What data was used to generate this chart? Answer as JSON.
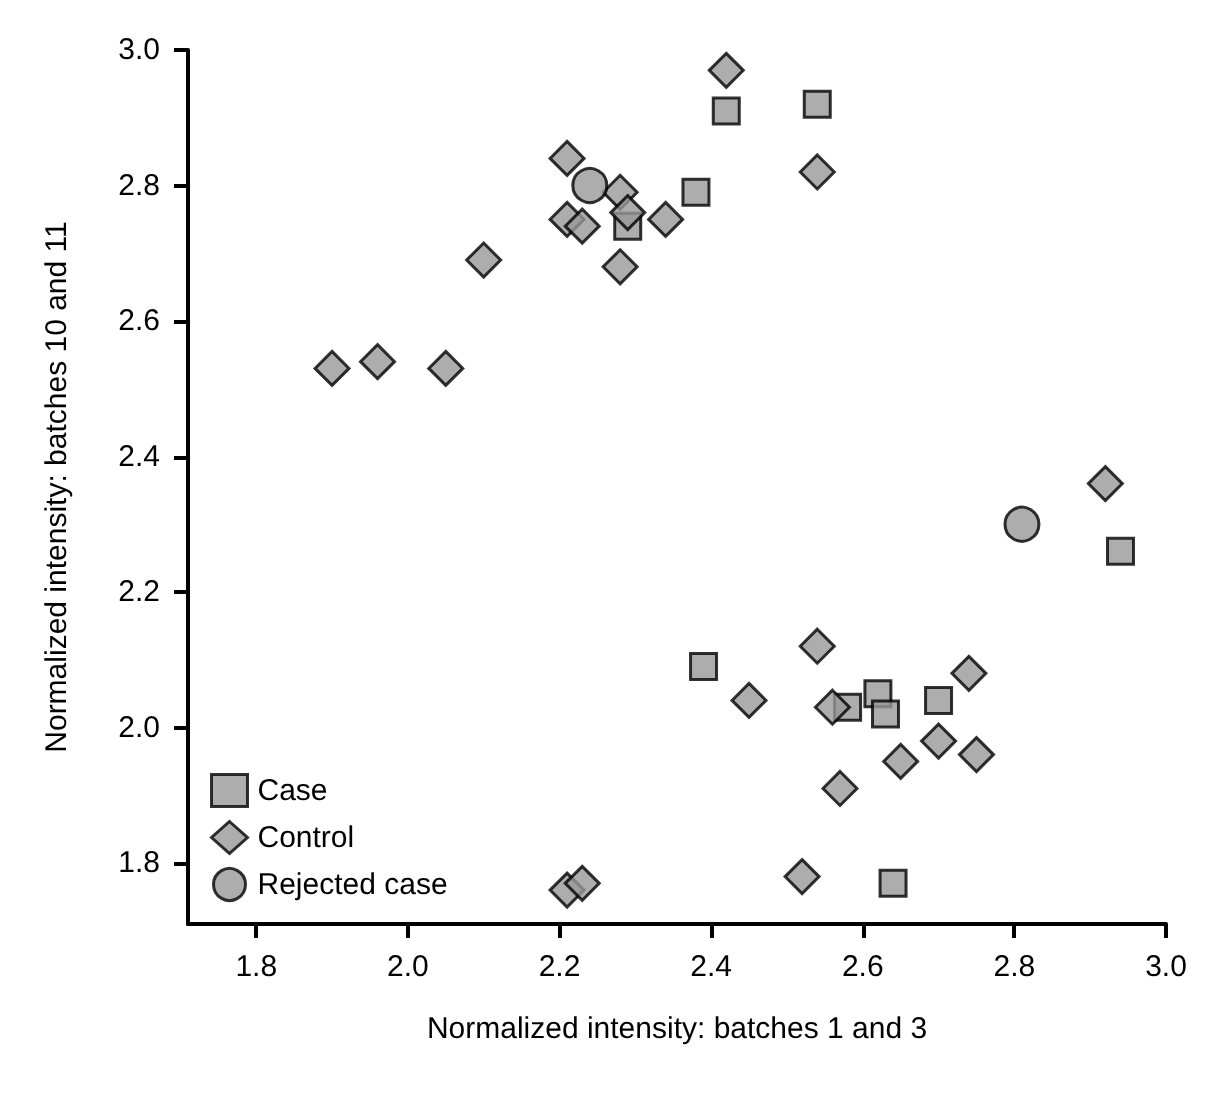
{
  "chart_data": {
    "type": "scatter",
    "xlabel": "Normalized intensity: batches 1 and 3",
    "ylabel": "Normalized intensity: batches 10 and 11",
    "xlim": [
      1.71,
      3.0
    ],
    "xticks": [
      1.8,
      {
        "value": 2,
        "label": "2.0"
      },
      2.2,
      2.4,
      2.6,
      2.8,
      {
        "value": 3,
        "label": "3.0"
      }
    ],
    "ylim": [
      1.71,
      3.0
    ],
    "yticks": [
      1.8,
      {
        "value": 2,
        "label": "2.0"
      },
      2.2,
      2.4,
      2.6,
      2.8,
      {
        "value": 3,
        "label": "3.0"
      }
    ],
    "grid": false,
    "legend": "bottom left",
    "series": [
      {
        "name": "Case",
        "color": "#999999",
        "marker": "square",
        "x": [
          2.29,
          2.38,
          2.42,
          2.54,
          2.94,
          2.39,
          2.58,
          2.62,
          2.63,
          2.7,
          2.64
        ],
        "values": [
          2.74,
          2.79,
          2.91,
          2.92,
          2.26,
          2.09,
          2.03,
          2.05,
          2.02,
          2.04,
          1.77
        ]
      },
      {
        "name": "Control",
        "color": "#999999",
        "marker": "diamond",
        "x": [
          2.21,
          2.28,
          2.21,
          2.23,
          2.29,
          2.34,
          2.28,
          2.1,
          1.9,
          1.96,
          2.05,
          2.42,
          2.54,
          2.92,
          2.54,
          2.45,
          2.56,
          2.74,
          2.7,
          2.75,
          2.65,
          2.57,
          2.52,
          2.21,
          2.23
        ],
        "values": [
          2.84,
          2.79,
          2.75,
          2.74,
          2.76,
          2.75,
          2.68,
          2.69,
          2.53,
          2.54,
          2.53,
          2.97,
          2.82,
          2.36,
          2.12,
          2.04,
          2.03,
          2.08,
          1.98,
          1.96,
          1.95,
          1.91,
          1.78,
          1.76,
          1.77
        ]
      },
      {
        "name": "Rejected case",
        "color": "#999999",
        "marker": "circle",
        "x": [
          2.24,
          2.81
        ],
        "values": [
          2.8,
          2.3
        ]
      }
    ]
  }
}
